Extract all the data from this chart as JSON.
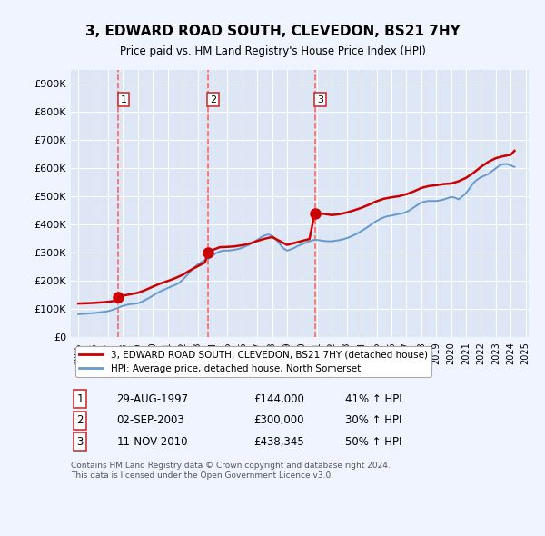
{
  "title": "3, EDWARD ROAD SOUTH, CLEVEDON, BS21 7HY",
  "subtitle": "Price paid vs. HM Land Registry's House Price Index (HPI)",
  "background_color": "#f0f4ff",
  "plot_bg_color": "#dce6f5",
  "sale_prices": [
    144000,
    300000,
    438345
  ],
  "sale_labels": [
    "1",
    "2",
    "3"
  ],
  "hpi_years": [
    1995.0,
    1995.25,
    1995.5,
    1995.75,
    1996.0,
    1996.25,
    1996.5,
    1996.75,
    1997.0,
    1997.25,
    1997.5,
    1997.75,
    1998.0,
    1998.25,
    1998.5,
    1998.75,
    1999.0,
    1999.25,
    1999.5,
    1999.75,
    2000.0,
    2000.25,
    2000.5,
    2000.75,
    2001.0,
    2001.25,
    2001.5,
    2001.75,
    2002.0,
    2002.25,
    2002.5,
    2002.75,
    2003.0,
    2003.25,
    2003.5,
    2003.75,
    2004.0,
    2004.25,
    2004.5,
    2004.75,
    2005.0,
    2005.25,
    2005.5,
    2005.75,
    2006.0,
    2006.25,
    2006.5,
    2006.75,
    2007.0,
    2007.25,
    2007.5,
    2007.75,
    2008.0,
    2008.25,
    2008.5,
    2008.75,
    2009.0,
    2009.25,
    2009.5,
    2009.75,
    2010.0,
    2010.25,
    2010.5,
    2010.75,
    2011.0,
    2011.25,
    2011.5,
    2011.75,
    2012.0,
    2012.25,
    2012.5,
    2012.75,
    2013.0,
    2013.25,
    2013.5,
    2013.75,
    2014.0,
    2014.25,
    2014.5,
    2014.75,
    2015.0,
    2015.25,
    2015.5,
    2015.75,
    2016.0,
    2016.25,
    2016.5,
    2016.75,
    2017.0,
    2017.25,
    2017.5,
    2017.75,
    2018.0,
    2018.25,
    2018.5,
    2018.75,
    2019.0,
    2019.25,
    2019.5,
    2019.75,
    2020.0,
    2020.25,
    2020.5,
    2020.75,
    2021.0,
    2021.25,
    2021.5,
    2021.75,
    2022.0,
    2022.25,
    2022.5,
    2022.75,
    2023.0,
    2023.25,
    2023.5,
    2023.75,
    2024.0,
    2024.25
  ],
  "hpi_values": [
    82000,
    83000,
    84000,
    85000,
    86000,
    87500,
    89000,
    91000,
    93000,
    97000,
    101000,
    107000,
    112000,
    115000,
    118000,
    119000,
    121000,
    126000,
    133000,
    140000,
    148000,
    156000,
    163000,
    169000,
    175000,
    181000,
    186000,
    193000,
    204000,
    218000,
    233000,
    247000,
    258000,
    267000,
    274000,
    280000,
    290000,
    299000,
    305000,
    308000,
    308000,
    309000,
    311000,
    314000,
    318000,
    324000,
    330000,
    337000,
    346000,
    355000,
    362000,
    365000,
    360000,
    348000,
    332000,
    316000,
    308000,
    312000,
    318000,
    325000,
    330000,
    336000,
    341000,
    345000,
    346000,
    344000,
    342000,
    341000,
    341000,
    343000,
    345000,
    348000,
    352000,
    357000,
    363000,
    370000,
    378000,
    386000,
    395000,
    404000,
    413000,
    420000,
    426000,
    430000,
    432000,
    435000,
    438000,
    440000,
    445000,
    452000,
    461000,
    470000,
    478000,
    482000,
    484000,
    484000,
    484000,
    486000,
    489000,
    494000,
    498000,
    496000,
    490000,
    500000,
    512000,
    530000,
    548000,
    560000,
    568000,
    574000,
    580000,
    590000,
    600000,
    610000,
    615000,
    615000,
    610000,
    605000
  ],
  "property_line_years": [
    1995.0,
    1995.5,
    1996.0,
    1996.5,
    1997.0,
    1997.5,
    1997.67,
    1998.0,
    1998.5,
    1999.0,
    1999.5,
    2000.0,
    2000.5,
    2001.0,
    2001.5,
    2002.0,
    2002.5,
    2003.0,
    2003.5,
    2003.67,
    2004.0,
    2004.5,
    2005.0,
    2005.5,
    2006.0,
    2006.5,
    2007.0,
    2007.5,
    2008.0,
    2008.5,
    2009.0,
    2009.5,
    2010.0,
    2010.5,
    2010.85,
    2011.0,
    2011.5,
    2012.0,
    2012.5,
    2013.0,
    2013.5,
    2014.0,
    2014.5,
    2015.0,
    2015.5,
    2016.0,
    2016.5,
    2017.0,
    2017.5,
    2018.0,
    2018.5,
    2019.0,
    2019.5,
    2020.0,
    2020.5,
    2021.0,
    2021.5,
    2022.0,
    2022.5,
    2023.0,
    2023.5,
    2024.0,
    2024.25
  ],
  "property_line_values": [
    120000,
    121000,
    122000,
    124000,
    126000,
    130000,
    144000,
    148000,
    153000,
    158000,
    168000,
    180000,
    191000,
    200000,
    210000,
    222000,
    238000,
    252000,
    266000,
    300000,
    310000,
    320000,
    321000,
    323000,
    327000,
    333000,
    342000,
    350000,
    356000,
    342000,
    328000,
    335000,
    342000,
    349000,
    438345,
    441000,
    438000,
    434000,
    437000,
    443000,
    451000,
    460000,
    471000,
    483000,
    492000,
    497000,
    501000,
    508000,
    518000,
    530000,
    537000,
    540000,
    544000,
    546000,
    554000,
    566000,
    584000,
    605000,
    623000,
    636000,
    643000,
    648000,
    662000
  ],
  "sale_year_floats": [
    1997.662,
    2003.672,
    2010.861
  ],
  "vline_color": "#ff6666",
  "property_line_color": "#cc0000",
  "hpi_line_color": "#6699cc",
  "ylim": [
    0,
    950000
  ],
  "xlim": [
    1994.5,
    2025.2
  ],
  "yticks": [
    0,
    100000,
    200000,
    300000,
    400000,
    500000,
    600000,
    700000,
    800000,
    900000
  ],
  "ytick_labels": [
    "£0",
    "£100K",
    "£200K",
    "£300K",
    "£400K",
    "£500K",
    "£600K",
    "£700K",
    "£800K",
    "£900K"
  ],
  "xtick_years": [
    1995,
    1996,
    1997,
    1998,
    1999,
    2000,
    2001,
    2002,
    2003,
    2004,
    2005,
    2006,
    2007,
    2008,
    2009,
    2010,
    2011,
    2012,
    2013,
    2014,
    2015,
    2016,
    2017,
    2018,
    2019,
    2020,
    2021,
    2022,
    2023,
    2024,
    2025
  ],
  "legend_property": "3, EDWARD ROAD SOUTH, CLEVEDON, BS21 7HY (detached house)",
  "legend_hpi": "HPI: Average price, detached house, North Somerset",
  "table_rows": [
    {
      "num": "1",
      "date": "29-AUG-1997",
      "price": "£144,000",
      "hpi": "41% ↑ HPI"
    },
    {
      "num": "2",
      "date": "02-SEP-2003",
      "price": "£300,000",
      "hpi": "30% ↑ HPI"
    },
    {
      "num": "3",
      "date": "11-NOV-2010",
      "price": "£438,345",
      "hpi": "50% ↑ HPI"
    }
  ],
  "footer": "Contains HM Land Registry data © Crown copyright and database right 2024.\nThis data is licensed under the Open Government Licence v3.0."
}
